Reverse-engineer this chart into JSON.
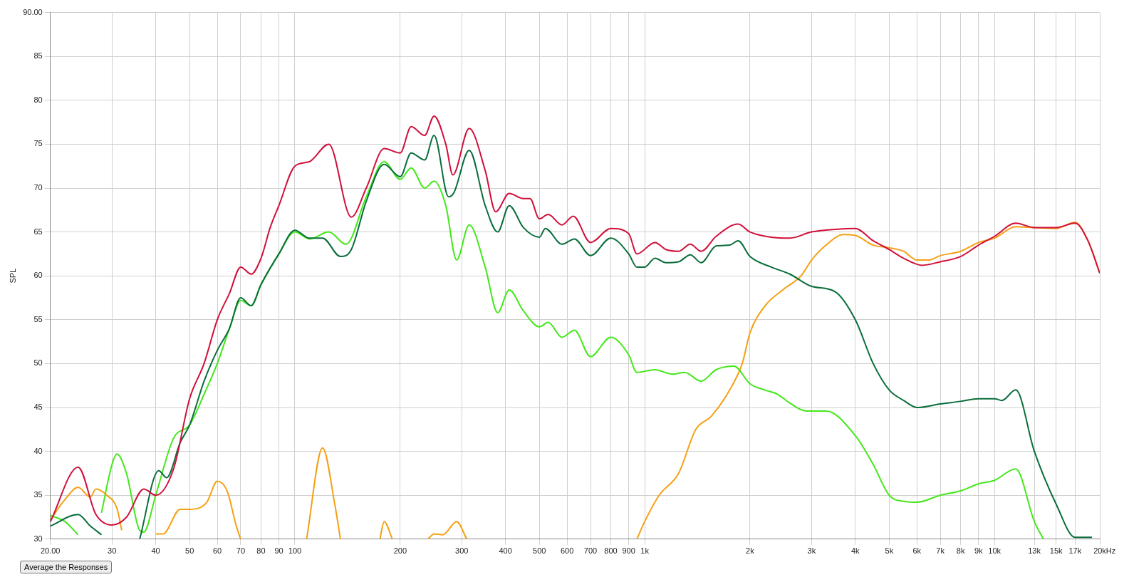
{
  "chart_data": {
    "type": "line",
    "ylabel": "SPL",
    "log": "x",
    "grid": true,
    "legend": false,
    "xlim": [
      20,
      20000
    ],
    "ylim": [
      30,
      90
    ],
    "xticks": [
      {
        "value": 20,
        "label": "20.00"
      },
      30,
      40,
      50,
      60,
      70,
      80,
      90,
      100,
      200,
      300,
      400,
      500,
      600,
      700,
      800,
      900,
      {
        "value": 1000,
        "label": "1k"
      },
      {
        "value": 2000,
        "label": "2k"
      },
      {
        "value": 3000,
        "label": "3k"
      },
      {
        "value": 4000,
        "label": "4k"
      },
      {
        "value": 5000,
        "label": "5k"
      },
      {
        "value": 6000,
        "label": "6k"
      },
      {
        "value": 7000,
        "label": "7k"
      },
      {
        "value": 8000,
        "label": "8k"
      },
      {
        "value": 9000,
        "label": "9k"
      },
      {
        "value": 10000,
        "label": "10k"
      },
      {
        "value": 13000,
        "label": "13k"
      },
      {
        "value": 15000,
        "label": "15k"
      },
      {
        "value": 17000,
        "label": "17k"
      },
      {
        "value": 20000,
        "label": "20k"
      }
    ],
    "xlabel": "Hz",
    "yticks": [
      30,
      35,
      40,
      45,
      50,
      55,
      60,
      65,
      70,
      75,
      80,
      85,
      {
        "value": 90,
        "label": "90.00"
      }
    ],
    "annotations": [
      "Average the Responses"
    ],
    "series": [
      {
        "color": "#d0103a",
        "x": [
          20,
          24,
          27,
          30,
          33,
          37,
          40,
          45,
          50,
          55,
          60,
          65,
          70,
          75,
          80,
          85,
          90,
          100,
          110,
          125,
          145,
          160,
          180,
          200,
          215,
          235,
          250,
          270,
          283,
          315,
          350,
          375,
          410,
          450,
          470,
          500,
          530,
          580,
          625,
          700,
          800,
          900,
          950,
          1070,
          1150,
          1250,
          1350,
          1450,
          1600,
          1850,
          2000,
          2300,
          2600,
          3000,
          3500,
          4000,
          4500,
          5000,
          5500,
          6200,
          7000,
          8000,
          9000,
          10000,
          11500,
          13000,
          15000,
          17000,
          18500,
          20000
        ],
        "values": [
          32,
          38.2,
          32.8,
          31.6,
          32.5,
          35.7,
          35,
          38,
          46,
          50,
          55,
          58,
          61,
          60.2,
          62,
          65.5,
          68,
          72.5,
          73,
          75,
          66.7,
          70,
          74.5,
          74,
          77,
          76,
          78.2,
          75,
          71.5,
          76.8,
          72,
          67.3,
          69.4,
          68.8,
          68.8,
          66.5,
          67,
          65.8,
          66.8,
          63.8,
          65.4,
          64.8,
          62.5,
          63.8,
          63,
          62.8,
          63.6,
          62.8,
          64.5,
          65.9,
          65,
          64.4,
          64.3,
          65,
          65.3,
          65.4,
          64,
          63,
          62,
          61.2,
          61.6,
          62.2,
          63.5,
          64.5,
          66,
          65.5,
          65.5,
          66,
          64,
          60.3
        ]
      },
      {
        "color": "#0a6e3c",
        "x": [
          20,
          24,
          26,
          28,
          29,
          36,
          40.8,
          43,
          47,
          50,
          55,
          60,
          65,
          70,
          75,
          80,
          90,
          100,
          110,
          120,
          135,
          145,
          160,
          180,
          200,
          215,
          235,
          250,
          275,
          285,
          315,
          350,
          380,
          410,
          450,
          500,
          520,
          580,
          630,
          700,
          800,
          900,
          950,
          1000,
          1070,
          1150,
          1250,
          1350,
          1450,
          1600,
          1750,
          1850,
          2000,
          2300,
          2600,
          3000,
          3500,
          4000,
          4500,
          5000,
          5500,
          6000,
          7000,
          8000,
          9000,
          10000,
          10500,
          11500,
          13000,
          15000,
          17000,
          19000
        ],
        "values": [
          31.5,
          32.8,
          31.5,
          30.5,
          null,
          30,
          37.8,
          37,
          41,
          43,
          48,
          51.5,
          54,
          57.5,
          56.6,
          59,
          62.5,
          65.2,
          64.3,
          64.3,
          62.2,
          63,
          68.5,
          72.7,
          71.3,
          74,
          73.2,
          76,
          69,
          69.5,
          74.3,
          68,
          65,
          68,
          65.5,
          64.4,
          65.4,
          63.6,
          64.2,
          62.3,
          64.3,
          62.5,
          61,
          61,
          62,
          61.5,
          61.6,
          62.4,
          61.5,
          63.4,
          63.5,
          64,
          62.2,
          61,
          60.2,
          58.8,
          58.2,
          55,
          50,
          47,
          45.8,
          45,
          45.4,
          45.7,
          46,
          46,
          45.8,
          47,
          40,
          34,
          30.2,
          30.2
        ]
      },
      {
        "color": "#44e81a",
        "x": [
          20,
          22,
          24,
          26,
          28,
          30,
          31,
          33,
          36,
          37,
          40,
          45,
          50,
          55,
          60,
          65,
          70,
          75,
          80,
          90,
          100,
          110,
          125,
          140,
          160,
          180,
          200,
          215,
          235,
          250,
          270,
          290,
          315,
          350,
          380,
          410,
          450,
          500,
          530,
          580,
          630,
          700,
          800,
          900,
          950,
          1070,
          1200,
          1300,
          1450,
          1600,
          1800,
          2000,
          2200,
          2400,
          2600,
          2900,
          3300,
          4000,
          4500,
          5000,
          5500,
          6000,
          7000,
          8000,
          9000,
          10000,
          11500,
          13000,
          13800
        ],
        "values": [
          32.7,
          32,
          30.5,
          null,
          33,
          38.5,
          39.7,
          37.5,
          31,
          30.8,
          35,
          41.5,
          43,
          46.5,
          50,
          54,
          57.2,
          56.6,
          59,
          62.5,
          65,
          64.2,
          65,
          63.6,
          69,
          73,
          71,
          72.3,
          70,
          70.8,
          68,
          61.8,
          65.8,
          61,
          55.8,
          58.4,
          56,
          54.2,
          54.7,
          53,
          53.8,
          50.8,
          53,
          51,
          49,
          49.3,
          48.8,
          49,
          48,
          49.3,
          49.7,
          47.7,
          47,
          46.5,
          45.5,
          44.6,
          44.6,
          41.8,
          38.5,
          35,
          34.3,
          34.2,
          35,
          35.5,
          36.3,
          36.7,
          38,
          32,
          30
        ]
      },
      {
        "color": "#f5a013",
        "x": [
          20,
          22,
          24,
          26,
          27,
          29,
          31,
          32,
          36,
          40,
          42,
          47,
          50,
          56,
          60,
          64,
          68,
          70,
          90,
          108,
          120,
          130,
          135,
          150,
          175,
          180,
          190,
          210,
          240,
          250,
          265,
          290,
          310,
          500,
          950,
          1000,
          1100,
          1250,
          1400,
          1550,
          1750,
          1900,
          2000,
          2200,
          2500,
          2800,
          3000,
          3300,
          3700,
          4000,
          4500,
          5000,
          5500,
          6000,
          6500,
          7000,
          8000,
          9000,
          10000,
          11500,
          13000,
          15000,
          17000,
          18500,
          20000
        ],
        "values": [
          32.2,
          34.5,
          35.9,
          34.8,
          35.7,
          35,
          33.5,
          31,
          null,
          30.6,
          30.6,
          33.4,
          33.4,
          34.2,
          36.6,
          35.5,
          31.5,
          30,
          null,
          30,
          40.4,
          34,
          30,
          null,
          30,
          32,
          30,
          null,
          30,
          30.6,
          30.5,
          32,
          30,
          null,
          30,
          32,
          35,
          37.5,
          42.5,
          44,
          47,
          50,
          53.5,
          56.5,
          58.5,
          60,
          61.8,
          63.5,
          64.7,
          64.6,
          63.5,
          63.2,
          62.8,
          61.8,
          61.8,
          62.3,
          62.8,
          63.8,
          64.3,
          65.6,
          65.5,
          65.4,
          66.1,
          64,
          60.3
        ]
      }
    ]
  }
}
